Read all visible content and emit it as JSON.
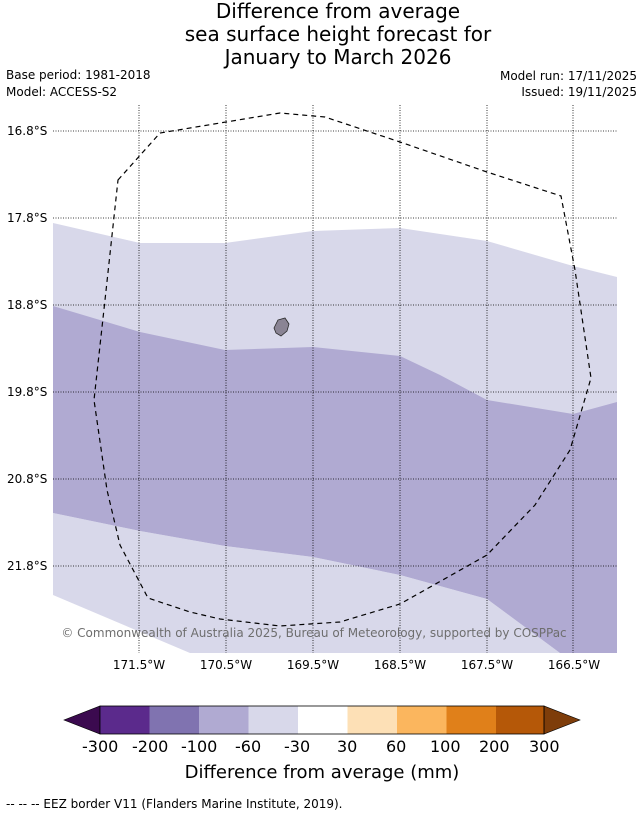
{
  "title_lines": [
    "Difference from average",
    "sea surface height forecast for",
    "January to March 2026"
  ],
  "base_period": "Base period: 1981-2018",
  "model": "Model: ACCESS-S2",
  "model_run": "Model run: 17/11/2025",
  "issued": "Issued: 19/11/2025",
  "lat_labels": [
    "16.8°S",
    "17.8°S",
    "18.8°S",
    "19.8°S",
    "20.8°S",
    "21.8°S"
  ],
  "lon_labels": [
    "171.5°W",
    "170.5°W",
    "169.5°W",
    "168.5°W",
    "167.5°W",
    "166.5°W"
  ],
  "copyright": "© Commonwealth of Australia 2025, Bureau of Meteorology, supported by COSPPac",
  "colorbar": {
    "labels": [
      "-300",
      "-200",
      "-100",
      "-60",
      "-30",
      "30",
      "60",
      "100",
      "200",
      "300"
    ],
    "colors": [
      "#3b0a4f",
      "#5b2a8c",
      "#8073b0",
      "#b0aad2",
      "#d8d8ea",
      "#ffffff",
      "#fde0b6",
      "#fbb65e",
      "#e0801a",
      "#b55808",
      "#7e3d0a"
    ],
    "title": "Difference from average (mm)"
  },
  "footnote": "--  --  -- EEZ border V11 (Flanders Marine Institute, 2019)."
}
